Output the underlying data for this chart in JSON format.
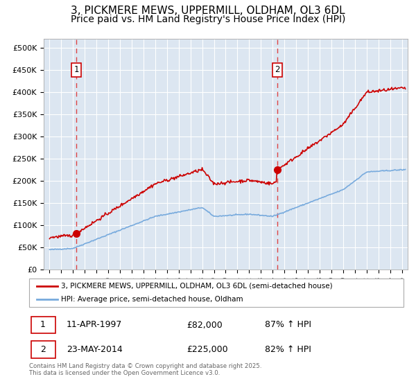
{
  "title": "3, PICKMERE MEWS, UPPERMILL, OLDHAM, OL3 6DL",
  "subtitle": "Price paid vs. HM Land Registry's House Price Index (HPI)",
  "xlim": [
    1994.5,
    2025.5
  ],
  "ylim": [
    0,
    520000
  ],
  "yticks": [
    0,
    50000,
    100000,
    150000,
    200000,
    250000,
    300000,
    350000,
    400000,
    450000,
    500000
  ],
  "ytick_labels": [
    "£0",
    "£50K",
    "£100K",
    "£150K",
    "£200K",
    "£250K",
    "£300K",
    "£350K",
    "£400K",
    "£450K",
    "£500K"
  ],
  "xticks": [
    1995,
    1996,
    1997,
    1998,
    1999,
    2000,
    2001,
    2002,
    2003,
    2004,
    2005,
    2006,
    2007,
    2008,
    2009,
    2010,
    2011,
    2012,
    2013,
    2014,
    2015,
    2016,
    2017,
    2018,
    2019,
    2020,
    2021,
    2022,
    2023,
    2024,
    2025
  ],
  "bg_color": "#dce6f1",
  "grid_color": "#ffffff",
  "line1_color": "#cc0000",
  "line2_color": "#77aadd",
  "vline_color": "#dd4444",
  "purchase1_x": 1997.28,
  "purchase1_y": 82000,
  "purchase2_x": 2014.39,
  "purchase2_y": 225000,
  "label1": "1",
  "label2": "2",
  "legend1": "3, PICKMERE MEWS, UPPERMILL, OLDHAM, OL3 6DL (semi-detached house)",
  "legend2": "HPI: Average price, semi-detached house, Oldham",
  "table_row1": [
    "1",
    "11-APR-1997",
    "£82,000",
    "87% ↑ HPI"
  ],
  "table_row2": [
    "2",
    "23-MAY-2014",
    "£225,000",
    "82% ↑ HPI"
  ],
  "footer": "Contains HM Land Registry data © Crown copyright and database right 2025.\nThis data is licensed under the Open Government Licence v3.0.",
  "title_fontsize": 11,
  "subtitle_fontsize": 10
}
